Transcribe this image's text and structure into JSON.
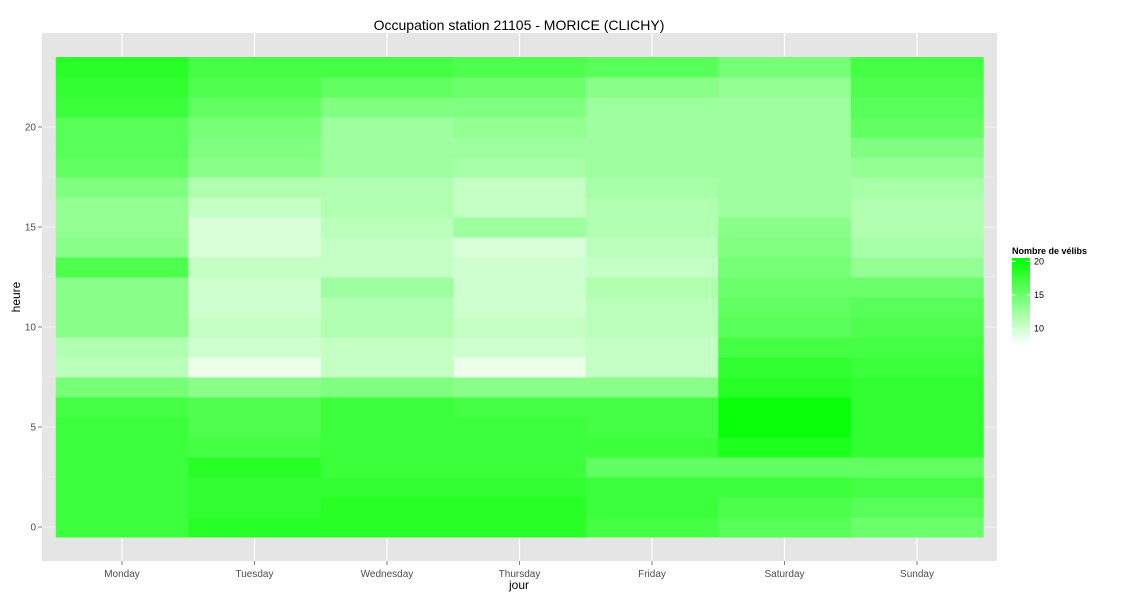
{
  "chart_data": {
    "type": "heatmap",
    "title": "Occupation station 21105 - MORICE (CLICHY)",
    "xlabel": "jour",
    "ylabel": "heure",
    "categories": [
      "Monday",
      "Tuesday",
      "Wednesday",
      "Thursday",
      "Friday",
      "Saturday",
      "Sunday"
    ],
    "hours": [
      0,
      1,
      2,
      3,
      4,
      5,
      6,
      7,
      8,
      9,
      10,
      11,
      12,
      13,
      14,
      15,
      16,
      17,
      18,
      19,
      20,
      21,
      22,
      23
    ],
    "y_ticks": [
      0,
      5,
      10,
      15,
      20
    ],
    "ylim": [
      -0.5,
      23.5
    ],
    "values": [
      [
        17.5,
        18.5,
        18.5,
        18.5,
        17.0,
        16.0,
        15.0
      ],
      [
        17.5,
        18.0,
        18.5,
        18.5,
        17.5,
        16.5,
        16.0
      ],
      [
        17.5,
        18.0,
        18.0,
        18.0,
        17.5,
        17.5,
        17.0
      ],
      [
        17.5,
        18.5,
        17.5,
        17.5,
        15.5,
        15.5,
        15.5
      ],
      [
        17.5,
        17.0,
        17.5,
        17.5,
        17.5,
        19.0,
        18.0
      ],
      [
        17.5,
        16.5,
        17.5,
        17.5,
        17.0,
        20.0,
        18.0
      ],
      [
        17.0,
        16.5,
        17.5,
        17.0,
        17.0,
        20.0,
        18.0
      ],
      [
        14.5,
        13.5,
        14.0,
        13.5,
        13.5,
        18.5,
        18.0
      ],
      [
        11.0,
        8.5,
        10.5,
        8.5,
        10.5,
        18.0,
        17.5
      ],
      [
        11.5,
        10.0,
        10.5,
        10.0,
        10.5,
        17.0,
        17.0
      ],
      [
        13.5,
        10.5,
        11.5,
        10.5,
        11.0,
        16.0,
        16.5
      ],
      [
        13.5,
        10.0,
        11.5,
        10.0,
        11.0,
        15.5,
        16.0
      ],
      [
        13.5,
        10.0,
        12.5,
        10.0,
        11.5,
        15.0,
        15.0
      ],
      [
        16.5,
        10.5,
        10.5,
        10.0,
        10.5,
        14.5,
        13.0
      ],
      [
        13.5,
        9.5,
        10.5,
        9.5,
        11.0,
        14.0,
        12.0
      ],
      [
        13.0,
        9.5,
        11.0,
        12.5,
        11.5,
        13.5,
        11.5
      ],
      [
        13.0,
        10.5,
        11.5,
        10.5,
        11.5,
        12.5,
        11.5
      ],
      [
        14.0,
        11.5,
        11.5,
        10.5,
        12.0,
        12.5,
        12.0
      ],
      [
        15.5,
        13.5,
        12.5,
        12.0,
        12.5,
        12.5,
        13.0
      ],
      [
        16.0,
        14.0,
        12.5,
        12.5,
        12.5,
        12.5,
        14.0
      ],
      [
        16.0,
        14.5,
        12.5,
        13.0,
        12.5,
        12.5,
        15.5
      ],
      [
        17.5,
        15.5,
        14.0,
        14.0,
        12.5,
        12.5,
        16.0
      ],
      [
        18.0,
        16.5,
        15.5,
        15.0,
        13.5,
        13.0,
        16.5
      ],
      [
        18.5,
        17.0,
        17.0,
        16.5,
        16.0,
        14.5,
        17.0
      ]
    ],
    "legend": {
      "title": "Nombre de vélibs",
      "breaks": [
        10,
        15,
        20
      ],
      "limits": [
        7.5,
        20.5
      ],
      "low_color": "#ffffff",
      "high_color": "#00ff00",
      "placement": "right"
    },
    "panel_background": "#e5e5e5",
    "grid": true
  }
}
